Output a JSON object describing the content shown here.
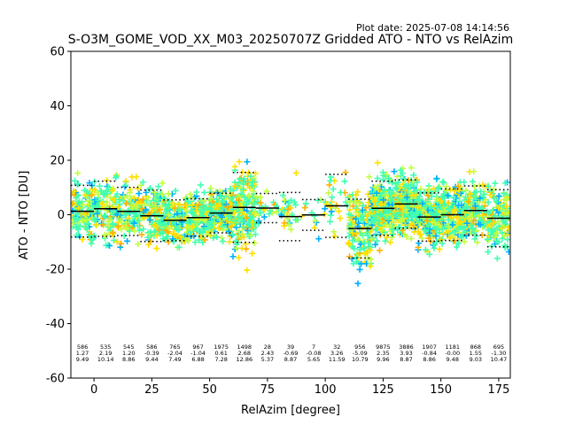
{
  "plot_date": "Plot date: 2025-07-08 14:14:56",
  "chart_data": {
    "type": "scatter",
    "title": "S-O3M_GOME_VOD_XX_M03_20250707Z Gridded ATO - NTO vs RelAzim",
    "xlabel": "RelAzim [degree]",
    "ylabel": "ATO - NTO [DU]",
    "xlim": [
      -10,
      180
    ],
    "ylim": [
      -60,
      60
    ],
    "xticks": [
      0,
      25,
      50,
      75,
      100,
      125,
      150,
      175
    ],
    "yticks": [
      -60,
      -40,
      -20,
      0,
      20,
      40,
      60
    ],
    "grid": false,
    "marker": "+",
    "colors": [
      "#0022ff",
      "#00b0ff",
      "#40ffb0",
      "#c0ff40",
      "#ffe000",
      "#ffb000"
    ],
    "bins": [
      {
        "center": -5,
        "count": "586",
        "mean": "1.27",
        "std": "9.49"
      },
      {
        "center": 5,
        "count": "535",
        "mean": "2.19",
        "std": "10.14"
      },
      {
        "center": 15,
        "count": "545",
        "mean": "1.20",
        "std": "8.86"
      },
      {
        "center": 25,
        "count": "586",
        "mean": "-0.39",
        "std": "9.44"
      },
      {
        "center": 35,
        "count": "765",
        "mean": "-2.04",
        "std": "7.49"
      },
      {
        "center": 45,
        "count": "967",
        "mean": "-1.04",
        "std": "6.88"
      },
      {
        "center": 55,
        "count": "1975",
        "mean": "0.61",
        "std": "7.28"
      },
      {
        "center": 65,
        "count": "1498",
        "mean": "2.68",
        "std": "12.86"
      },
      {
        "center": 75,
        "count": "28",
        "mean": "2.43",
        "std": "5.37"
      },
      {
        "center": 85,
        "count": "39",
        "mean": "-0.69",
        "std": "8.87"
      },
      {
        "center": 95,
        "count": "7",
        "mean": "-0.08",
        "std": "5.65"
      },
      {
        "center": 105,
        "count": "32",
        "mean": "3.26",
        "std": "11.59"
      },
      {
        "center": 115,
        "count": "956",
        "mean": "-5.09",
        "std": "10.79"
      },
      {
        "center": 125,
        "count": "9875",
        "mean": "2.35",
        "std": "9.96"
      },
      {
        "center": 135,
        "count": "3886",
        "mean": "3.93",
        "std": "8.87"
      },
      {
        "center": 145,
        "count": "1907",
        "mean": "-0.84",
        "std": "8.86"
      },
      {
        "center": 155,
        "count": "1181",
        "mean": "-0.00",
        "std": "9.48"
      },
      {
        "center": 165,
        "count": "868",
        "mean": "1.55",
        "std": "9.03"
      },
      {
        "center": 175,
        "count": "695",
        "mean": "-1.30",
        "std": "10.47"
      }
    ]
  }
}
